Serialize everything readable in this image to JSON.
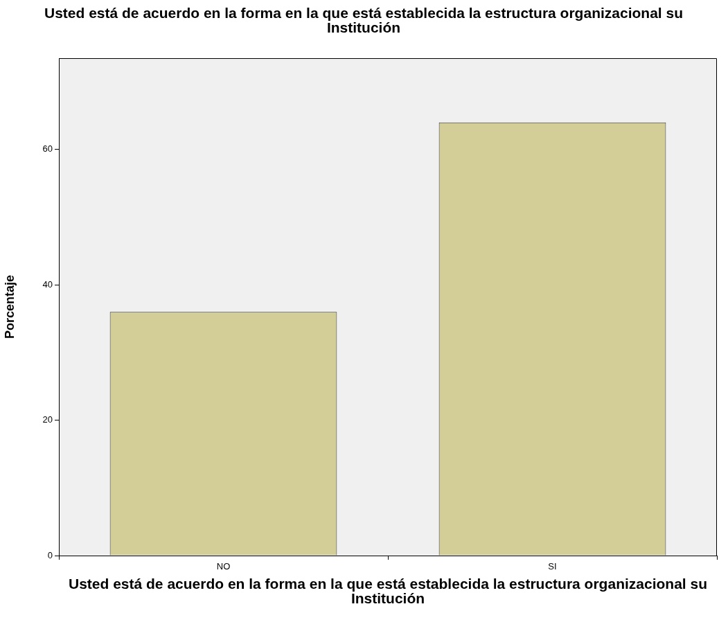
{
  "chart_data": {
    "type": "bar",
    "title": "Usted está de acuerdo en la forma en la que está establecida la estructura organizacional su Institución",
    "xlabel": "Usted está de acuerdo en la forma en la que está establecida la estructura organizacional su Institución",
    "ylabel": "Porcentaje",
    "categories": [
      "NO",
      "SI"
    ],
    "values": [
      36,
      64
    ],
    "color": "#d3ce97",
    "ylim": [
      0,
      73.5
    ],
    "yticks": [
      0,
      20,
      40,
      60
    ],
    "grid": false,
    "legend": false
  }
}
